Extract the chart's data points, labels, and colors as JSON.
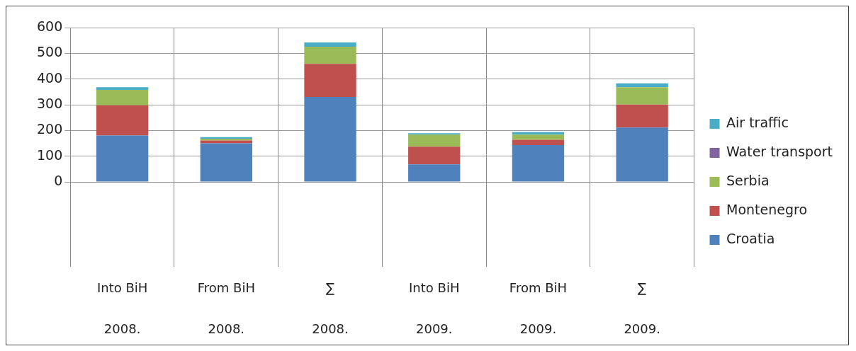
{
  "chart_data": {
    "type": "bar",
    "stacked": true,
    "categories": [
      "Into BiH\n2008.",
      "From BiH\n2008.",
      "∑\n2008.",
      "Into BiH\n2009.",
      "From BiH\n2009.",
      "∑\n2009."
    ],
    "series": [
      {
        "name": "Croatia",
        "color": "#4f81bd",
        "values": [
          180,
          150,
          330,
          68,
          143,
          211
        ]
      },
      {
        "name": "Montenegro",
        "color": "#c0504d",
        "values": [
          118,
          11,
          129,
          69,
          21,
          90
        ]
      },
      {
        "name": "Serbia",
        "color": "#9bbb59",
        "values": [
          60,
          7,
          67,
          47,
          20,
          67
        ]
      },
      {
        "name": "Water transport",
        "color": "#8064a2",
        "values": [
          0,
          0,
          0,
          0,
          0,
          0
        ]
      },
      {
        "name": "Air traffic",
        "color": "#4bacc6",
        "values": [
          10,
          6,
          16,
          5,
          10,
          15
        ]
      }
    ],
    "ylim": [
      0,
      600
    ],
    "yticks": [
      0,
      100,
      200,
      300,
      400,
      500,
      600
    ],
    "grid": "y",
    "legend": "right"
  }
}
